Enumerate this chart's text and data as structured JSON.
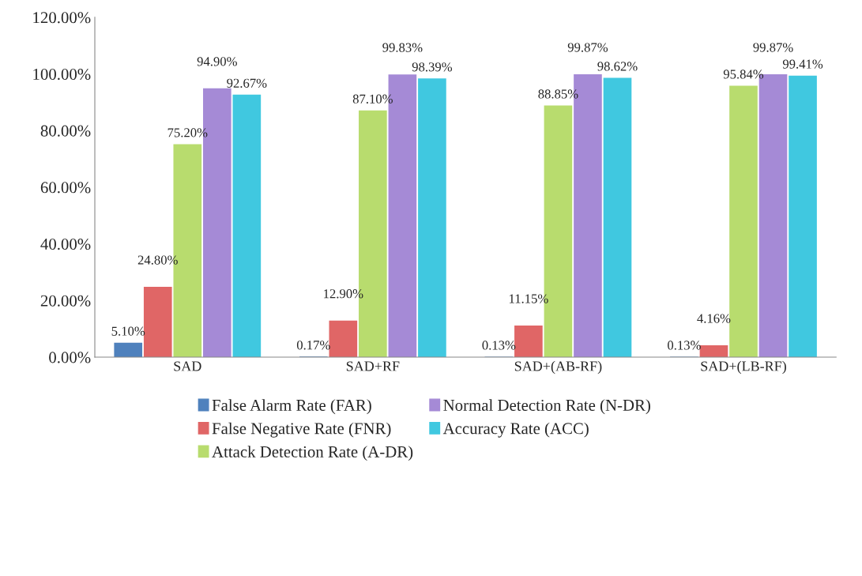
{
  "chart_data": {
    "type": "bar",
    "categories": [
      "SAD",
      "SAD+RF",
      "SAD+(AB-RF)",
      "SAD+(LB-RF)"
    ],
    "series": [
      {
        "name": "False Alarm Rate (FAR)",
        "color": "#4f81bd",
        "values": [
          5.1,
          0.17,
          0.13,
          0.13
        ],
        "value_labels": [
          "5.10%",
          "0.17%",
          "0.13%",
          "0.13%"
        ]
      },
      {
        "name": "False Negative Rate (FNR)",
        "color": "#e06666",
        "values": [
          24.8,
          12.9,
          11.15,
          4.16
        ],
        "value_labels": [
          "24.80%",
          "12.90%",
          "11.15%",
          "4.16%"
        ]
      },
      {
        "name": "Attack Detection Rate (A-DR)",
        "color": "#b8dc6e",
        "values": [
          75.2,
          87.1,
          88.85,
          95.84
        ],
        "value_labels": [
          "75.20%",
          "87.10%",
          "88.85%",
          "95.84%"
        ]
      },
      {
        "name": "Normal Detection Rate (N-DR)",
        "color": "#a58ad6",
        "values": [
          94.9,
          99.83,
          99.87,
          99.87
        ],
        "value_labels": [
          "94.90%",
          "99.83%",
          "99.87%",
          "99.87%"
        ]
      },
      {
        "name": "Accuracy Rate (ACC)",
        "color": "#40c8e0",
        "values": [
          92.67,
          98.39,
          98.62,
          99.41
        ],
        "value_labels": [
          "92.67%",
          "98.39%",
          "98.62%",
          "99.41%"
        ]
      }
    ],
    "ylim": [
      0,
      120
    ],
    "yticks": [
      {
        "value": 0,
        "label": "0.00%"
      },
      {
        "value": 20,
        "label": "20.00%"
      },
      {
        "value": 40,
        "label": "40.00%"
      },
      {
        "value": 60,
        "label": "60.00%"
      },
      {
        "value": 80,
        "label": "80.00%"
      },
      {
        "value": 100,
        "label": "100.00%"
      },
      {
        "value": 120,
        "label": "120.00%"
      }
    ],
    "grid": false,
    "legend": "bottom"
  }
}
